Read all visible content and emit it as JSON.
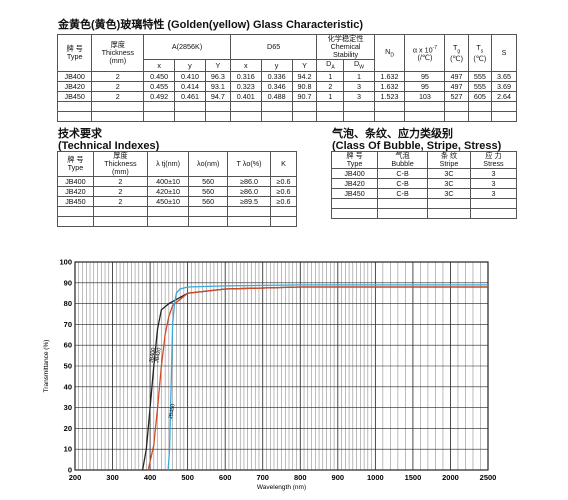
{
  "main_title": "金黄色(黄色)玻璃特性 (Golden(yellow) Glass Characteristic)",
  "table1": {
    "h_type_cn": "牌 号",
    "h_type_en": "Type",
    "h_thick_cn": "厚度",
    "h_thick_en": "Thickness",
    "h_thick_unit": "(mm)",
    "h_a": "A(2856K)",
    "h_d65": "D65",
    "h_chem_cn": "化学稳定性",
    "h_chem_en1": "Chemical",
    "h_chem_en2": "Stability",
    "h_nd": "N",
    "h_nd_sub": "D",
    "h_alpha": "α x 10",
    "h_alpha_sup": "-7",
    "h_alpha_unit": "(/℃)",
    "h_tg": "T",
    "h_tg_sub": "g",
    "h_tg_unit": "(℃)",
    "h_ts": "T",
    "h_ts_sub": "s",
    "h_ts_unit": "(℃)",
    "h_s": "S",
    "h_x": "x",
    "h_y": "y",
    "h_Y": "Y",
    "h_x2": "x",
    "h_y2": "y",
    "h_Y2": "Y",
    "h_da": "D",
    "h_da_sub": "A",
    "h_dw": "D",
    "h_dw_sub": "W",
    "rows": [
      [
        "JB400",
        "2",
        "0.450",
        "0.410",
        "96.3",
        "0.316",
        "0.336",
        "94.2",
        "1",
        "1",
        "1.632",
        "95",
        "497",
        "555",
        "3.65"
      ],
      [
        "JB420",
        "2",
        "0.455",
        "0.414",
        "93.1",
        "0.323",
        "0.346",
        "90.8",
        "2",
        "3",
        "1.632",
        "95",
        "497",
        "555",
        "3.69"
      ],
      [
        "JB450",
        "2",
        "0.492",
        "0.461",
        "94.7",
        "0.401",
        "0.488",
        "90.7",
        "1",
        "3",
        "1.523",
        "103",
        "527",
        "605",
        "2.64"
      ]
    ]
  },
  "tech_title_cn": "技术要求",
  "tech_title_en": "(Technical Indexes)",
  "table2": {
    "h_type_cn": "牌 号",
    "h_type_en": "Type",
    "h_thick_cn": "厚度",
    "h_thick_en": "Thickness",
    "h_thick_unit": "(mm)",
    "h_ltj": "λ tj(nm)",
    "h_l0": "λo(nm)",
    "h_tl0": "T λo(%)",
    "h_k": "K",
    "rows": [
      [
        "JB400",
        "2",
        "400±10",
        "560",
        "≥86.0",
        "≥0.6"
      ],
      [
        "JB420",
        "2",
        "420±10",
        "560",
        "≥86.0",
        "≥0.6"
      ],
      [
        "JB450",
        "2",
        "450±10",
        "560",
        "≥89.5",
        "≥0.6"
      ]
    ]
  },
  "bubble_title_cn": "气泡、条纹、应力类级别",
  "bubble_title_en": "(Class Of Bubble, Stripe, Stress)",
  "table3": {
    "h_type_cn": "牌 号",
    "h_type_en": "Type",
    "h_bubble_cn": "气泡",
    "h_bubble_en": "Bubble",
    "h_stripe_cn": "条 纹",
    "h_stripe_en": "Stripe",
    "h_stress_cn": "应 力",
    "h_stress_en": "Stress",
    "rows": [
      [
        "JB400",
        "C-B",
        "3C",
        "3"
      ],
      [
        "JB420",
        "C-B",
        "3C",
        "3"
      ],
      [
        "JB450",
        "C-B",
        "3C",
        "3"
      ]
    ]
  },
  "chart_data": {
    "type": "line",
    "xlabel": "Wavelength (nm)",
    "ylabel": "Transmittance (%)",
    "xlim": [
      200,
      2500
    ],
    "ylim": [
      0,
      100
    ],
    "xticks": [
      200,
      300,
      400,
      500,
      600,
      700,
      800,
      900,
      1000,
      1500,
      2000,
      2500
    ],
    "yticks": [
      0,
      10,
      20,
      30,
      40,
      50,
      60,
      70,
      80,
      90,
      100
    ],
    "grid": true,
    "series": [
      {
        "name": "JB400",
        "color": "#222222",
        "points": [
          [
            380,
            0
          ],
          [
            390,
            10
          ],
          [
            400,
            30
          ],
          [
            410,
            50
          ],
          [
            420,
            68
          ],
          [
            430,
            77
          ],
          [
            450,
            80
          ],
          [
            480,
            83
          ],
          [
            500,
            85
          ],
          [
            600,
            87
          ],
          [
            800,
            88
          ],
          [
            1000,
            88
          ],
          [
            1500,
            88
          ],
          [
            2000,
            88
          ],
          [
            2500,
            88
          ]
        ]
      },
      {
        "name": "JB420",
        "color": "#d04a28",
        "points": [
          [
            395,
            0
          ],
          [
            410,
            12
          ],
          [
            420,
            30
          ],
          [
            430,
            50
          ],
          [
            440,
            65
          ],
          [
            450,
            74
          ],
          [
            460,
            79
          ],
          [
            480,
            82
          ],
          [
            500,
            85
          ],
          [
            600,
            87
          ],
          [
            800,
            88
          ],
          [
            1000,
            88
          ],
          [
            1500,
            88
          ],
          [
            2000,
            88
          ],
          [
            2500,
            88
          ]
        ]
      },
      {
        "name": "JB450",
        "color": "#3aa8d8",
        "points": [
          [
            448,
            0
          ],
          [
            452,
            10
          ],
          [
            456,
            40
          ],
          [
            460,
            70
          ],
          [
            465,
            80
          ],
          [
            470,
            85
          ],
          [
            480,
            87
          ],
          [
            500,
            88
          ],
          [
            600,
            88.5
          ],
          [
            800,
            89
          ],
          [
            1000,
            89
          ],
          [
            1500,
            89
          ],
          [
            2000,
            89
          ],
          [
            2500,
            89
          ]
        ]
      }
    ]
  }
}
